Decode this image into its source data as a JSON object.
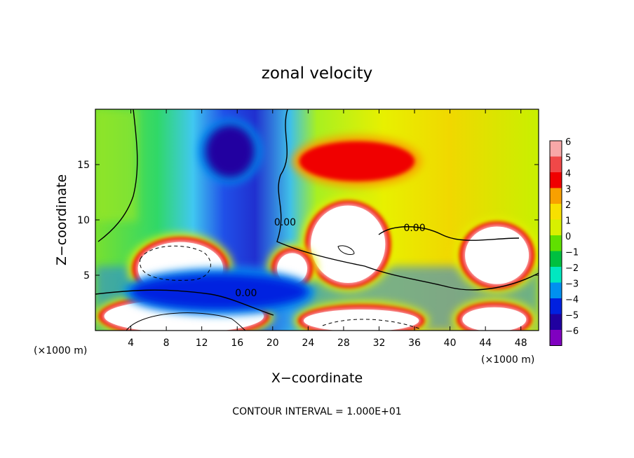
{
  "chart_data": {
    "type": "heatmap",
    "title": "zonal velocity",
    "xlabel": "X−coordinate",
    "ylabel": "Z−coordinate",
    "x_unit": "(×1000 m)",
    "y_unit": "(×1000 m)",
    "xlim": [
      0,
      50
    ],
    "ylim": [
      0,
      20
    ],
    "x_ticks": [
      4,
      8,
      12,
      16,
      20,
      24,
      28,
      32,
      36,
      40,
      44,
      48
    ],
    "y_ticks": [
      5,
      10,
      15
    ],
    "colorbar": {
      "levels": [
        6,
        5,
        4,
        3,
        2,
        1,
        0,
        -1,
        -2,
        -3,
        -4,
        -5,
        -6
      ],
      "level_labels": [
        "6",
        "5",
        "4",
        "3",
        "2",
        "1",
        "0",
        "−1",
        "−2",
        "−3",
        "−4",
        "−5",
        "−6"
      ],
      "colors": [
        "#f8a8a8",
        "#f04848",
        "#f00000",
        "#f8a000",
        "#f8e000",
        "#d8f000",
        "#60e000",
        "#00c040",
        "#00e8c0",
        "#0090f0",
        "#0020e0",
        "#2000a0",
        "#8000c0"
      ]
    },
    "contour_labels": [
      {
        "text": "0.00",
        "x": 17,
        "y": 3.1
      },
      {
        "text": "0.00",
        "x": 36,
        "y": 9.0
      },
      {
        "text": "0.00",
        "x": 21.4,
        "y": 9.5
      }
    ],
    "regions": [
      {
        "name": "high-left-lobe",
        "cx": 9.6,
        "cy": 5.6,
        "rx": 4.8,
        "ry": 2.4,
        "value": 6
      },
      {
        "name": "high-bottom-left",
        "cx": 10,
        "cy": 1.3,
        "rx": 9,
        "ry": 1.5,
        "value": 6
      },
      {
        "name": "high-center",
        "cx": 28.5,
        "cy": 7.8,
        "rx": 4.2,
        "ry": 3.5,
        "value": 6
      },
      {
        "name": "high-right",
        "cx": 45.3,
        "cy": 6.8,
        "rx": 3.6,
        "ry": 2.6,
        "value": 6
      },
      {
        "name": "high-bottom-center",
        "cx": 30,
        "cy": 0.9,
        "rx": 6.5,
        "ry": 1.0,
        "value": 6
      },
      {
        "name": "high-bottom-right",
        "cx": 45,
        "cy": 1.0,
        "rx": 3.6,
        "ry": 1.1,
        "value": 6
      },
      {
        "name": "high-small-blob",
        "cx": 22.2,
        "cy": 5.6,
        "rx": 1.7,
        "ry": 1.4,
        "value": 6
      },
      {
        "name": "jet-upper",
        "cx": 29.5,
        "cy": 15.3,
        "rx": 6.5,
        "ry": 1.8,
        "value": 4
      },
      {
        "name": "low-upper-core",
        "cx": 15.2,
        "cy": 16.2,
        "rx": 2.8,
        "ry": 2.4,
        "value": -5
      },
      {
        "name": "low-lower",
        "cx": 14,
        "cy": 3.5,
        "rx": 10,
        "ry": 1.6,
        "value": -4
      }
    ],
    "annotation": "CONTOUR INTERVAL = 1.000E+01"
  }
}
